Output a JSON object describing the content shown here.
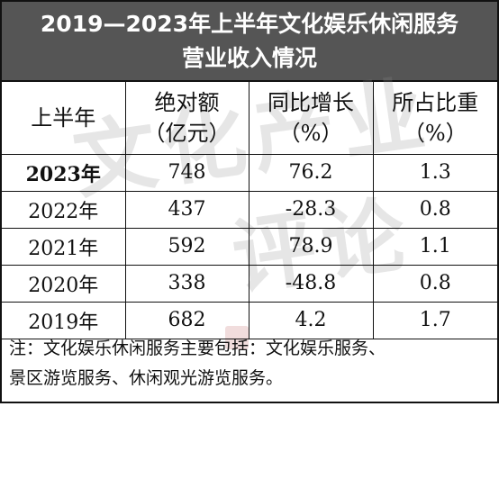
{
  "title": {
    "line1": "2019—2023年上半年文化娱乐休闲服务",
    "line2": "营业收入情况"
  },
  "table": {
    "headers": [
      {
        "top": "上半年",
        "bottom": ""
      },
      {
        "top": "绝对额",
        "bottom": "（亿元）"
      },
      {
        "top": "同比增长",
        "bottom": "（%）"
      },
      {
        "top": "所占比重",
        "bottom": "（%）"
      }
    ],
    "rows": [
      {
        "year": "2023年",
        "amount": "748",
        "growth": "76.2",
        "share": "1.3"
      },
      {
        "year": "2022年",
        "amount": "437",
        "growth": "-28.3",
        "share": "0.8"
      },
      {
        "year": "2021年",
        "amount": "592",
        "growth": "78.9",
        "share": "1.1"
      },
      {
        "year": "2020年",
        "amount": "338",
        "growth": "-48.8",
        "share": "0.8"
      },
      {
        "year": "2019年",
        "amount": "682",
        "growth": "4.2",
        "share": "1.7"
      }
    ]
  },
  "note": {
    "line1": "注：文化娱乐休闲服务主要包括：文化娱乐服务、",
    "line2": "景区游览服务、休闲观光游览服务。"
  },
  "watermark": {
    "line1": "文化产业",
    "line2": "评论"
  },
  "colors": {
    "title_bg": "#555555",
    "title_fg": "#ffffff",
    "border": "#111111"
  }
}
